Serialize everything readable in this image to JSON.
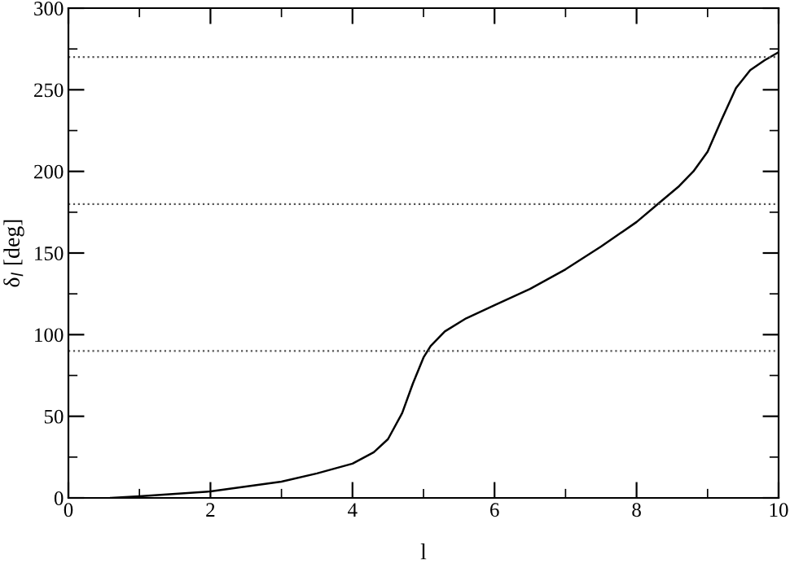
{
  "chart_data": {
    "type": "line",
    "xlabel": "l",
    "ylabel": "δ$_{l}$ [deg]",
    "series": [
      {
        "color": "#000000",
        "x": [
          0.6,
          1,
          2,
          3,
          3.5,
          4,
          4.3,
          4.5,
          4.7,
          4.85,
          5,
          5.1,
          5.3,
          5.6,
          6,
          6.5,
          7,
          7.5,
          8,
          8.3,
          8.6,
          8.8,
          9,
          9.2,
          9.4,
          9.6,
          9.8,
          10
        ],
        "values": [
          0,
          1,
          4,
          10,
          15,
          21,
          28,
          36,
          52,
          70,
          86,
          93,
          102,
          110,
          118,
          128,
          140,
          154,
          169,
          180,
          191,
          200,
          212,
          232,
          251,
          262,
          268,
          273
        ]
      }
    ],
    "xlim": [
      0,
      10
    ],
    "xticks": [
      0,
      2,
      4,
      6,
      8,
      10
    ],
    "ylim": [
      0,
      300
    ],
    "yticks": [
      0,
      50,
      100,
      150,
      200,
      250,
      300
    ],
    "ref_lines": [
      {
        "axis": "y",
        "value": 90,
        "line_style": "dotted",
        "color": "#555555"
      },
      {
        "axis": "y",
        "value": 180,
        "line_style": "dotted",
        "color": "#555555"
      },
      {
        "axis": "y",
        "value": 270,
        "line_style": "dotted",
        "color": "#555555"
      }
    ],
    "grid": false,
    "legend": false,
    "marker": "none",
    "line_style": "solid"
  }
}
